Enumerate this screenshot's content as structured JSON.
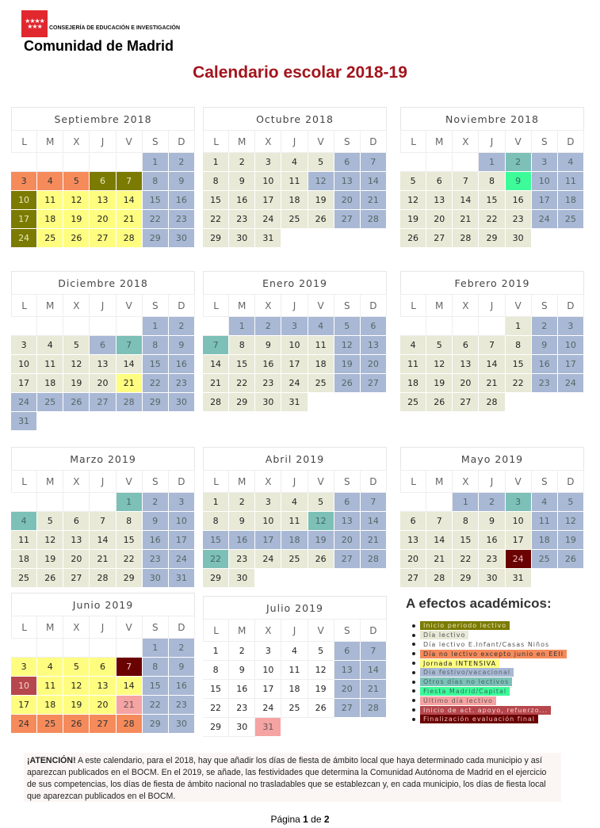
{
  "header": {
    "logo_stars": "★★★★ ★★★",
    "department": "CONSEJERÍA DE EDUCACIÓN E INVESTIGACIÓN",
    "org": "Comunidad de Madrid",
    "title": "Calendario escolar 2018-19"
  },
  "weekdays": [
    "L",
    "M",
    "X",
    "J",
    "V",
    "S",
    "D"
  ],
  "types": {
    "inicio": {
      "bg": "#7b7b02",
      "fg": "#e8e8c0"
    },
    "lectivo": {
      "bg": "#e8e9d6",
      "fg": "#222"
    },
    "einf": {
      "bg": "#ffffff",
      "fg": "#222"
    },
    "noeeii": {
      "bg": "#f58a5b",
      "fg": "#333"
    },
    "intensiva": {
      "bg": "#fffd80",
      "fg": "#222"
    },
    "festivo": {
      "bg": "#a9b8d4",
      "fg": "#566"
    },
    "otros": {
      "bg": "#7dc0b7",
      "fg": "#466"
    },
    "fiesta": {
      "bg": "#3dfb98",
      "fg": "#366"
    },
    "ultimo": {
      "bg": "#f5a3a3",
      "fg": "#655"
    },
    "apoyo": {
      "bg": "#b6474c",
      "fg": "#f3d0d0"
    },
    "final": {
      "bg": "#6b0202",
      "fg": "#f0c0c0"
    }
  },
  "months": [
    {
      "name": "Septiembre 2018",
      "offset": 5,
      "days": 30,
      "special": {
        "3": "noeeii",
        "4": "noeeii",
        "5": "noeeii",
        "6": "inicio",
        "7": "inicio",
        "10": "inicio",
        "17": "inicio",
        "24": "inicio",
        "11": "intensiva",
        "12": "intensiva",
        "13": "intensiva",
        "14": "intensiva",
        "18": "intensiva",
        "19": "intensiva",
        "20": "intensiva",
        "21": "intensiva",
        "25": "intensiva",
        "26": "intensiva",
        "27": "intensiva",
        "28": "intensiva"
      }
    },
    {
      "name": "Octubre 2018",
      "offset": 0,
      "days": 31,
      "special": {
        "12": "festivo"
      }
    },
    {
      "name": "Noviembre 2018",
      "offset": 3,
      "days": 30,
      "special": {
        "1": "festivo",
        "2": "otros",
        "9": "fiesta"
      }
    },
    {
      "name": "Diciembre 2018",
      "offset": 5,
      "days": 31,
      "special": {
        "6": "festivo",
        "7": "otros",
        "21": "intensiva",
        "24": "festivo",
        "25": "festivo",
        "26": "festivo",
        "27": "festivo",
        "28": "festivo",
        "31": "festivo"
      }
    },
    {
      "name": "Enero 2019",
      "offset": 1,
      "days": 31,
      "special": {
        "1": "festivo",
        "2": "festivo",
        "3": "festivo",
        "4": "festivo",
        "7": "otros"
      }
    },
    {
      "name": "Febrero 2019",
      "offset": 4,
      "days": 28,
      "special": {}
    },
    {
      "name": "Marzo 2019",
      "offset": 4,
      "days": 31,
      "special": {
        "1": "otros",
        "4": "otros"
      }
    },
    {
      "name": "Abril 2019",
      "offset": 0,
      "days": 30,
      "special": {
        "12": "otros",
        "15": "festivo",
        "16": "festivo",
        "17": "festivo",
        "18": "festivo",
        "19": "festivo",
        "22": "otros"
      }
    },
    {
      "name": "Mayo 2019",
      "offset": 2,
      "days": 31,
      "special": {
        "1": "festivo",
        "2": "festivo",
        "3": "otros",
        "24": "final"
      }
    },
    {
      "name": "Junio 2019",
      "offset": 5,
      "days": 30,
      "special": {
        "3": "intensiva",
        "4": "intensiva",
        "5": "intensiva",
        "6": "intensiva",
        "7": "final",
        "10": "apoyo",
        "11": "intensiva",
        "12": "intensiva",
        "13": "intensiva",
        "14": "intensiva",
        "17": "intensiva",
        "18": "intensiva",
        "19": "intensiva",
        "20": "intensiva",
        "21": "ultimo",
        "24": "noeeii",
        "25": "noeeii",
        "26": "noeeii",
        "27": "noeeii",
        "28": "noeeii"
      }
    },
    {
      "name": "Julio 2019",
      "offset": 0,
      "days": 31,
      "default_weekday": "einf",
      "special": {
        "31": "ultimo"
      }
    }
  ],
  "legend": {
    "title": "A efectos académicos:",
    "items": [
      {
        "label": "Inicio periodo lectivo",
        "type": "inicio"
      },
      {
        "label": "Día lectivo",
        "type": "lectivo"
      },
      {
        "label": "Día lectivo E.Infant/Casas Niños",
        "type": "einf"
      },
      {
        "label": "Día no lectivo excepto junio en EEII",
        "type": "noeeii"
      },
      {
        "label": "Jornada INTENSIVA",
        "type": "intensiva"
      },
      {
        "label": "Día festivo/vacacional",
        "type": "festivo"
      },
      {
        "label": "Otros días no lectivos",
        "type": "otros"
      },
      {
        "label": "Fiesta Madrid/Capital",
        "type": "fiesta"
      },
      {
        "label": "Último día lectivo",
        "type": "ultimo"
      },
      {
        "label": "Inicio de act. apoyo, refuerzo...",
        "type": "apoyo"
      },
      {
        "label": "Finalización evaluación final",
        "type": "final"
      }
    ]
  },
  "notice": {
    "strong": "¡ATENCIÓN!",
    "text": " A este calendario, para el 2018, hay que añadir los días de fiesta de ámbito local que haya determinado cada municipio y así aparezcan publicados en el BOCM. En el 2019, se añade, las festividades que determina la Comunidad Autónoma de Madrid en el ejercicio de sus competencias, los días de fiesta de ámbito nacional no trasladables que se establezcan y, en cada municipio, los días de fiesta local que aparezcan publicados en el BOCM."
  },
  "footer": {
    "pre": "Página ",
    "page": "1",
    "mid": " de ",
    "total": "2"
  }
}
